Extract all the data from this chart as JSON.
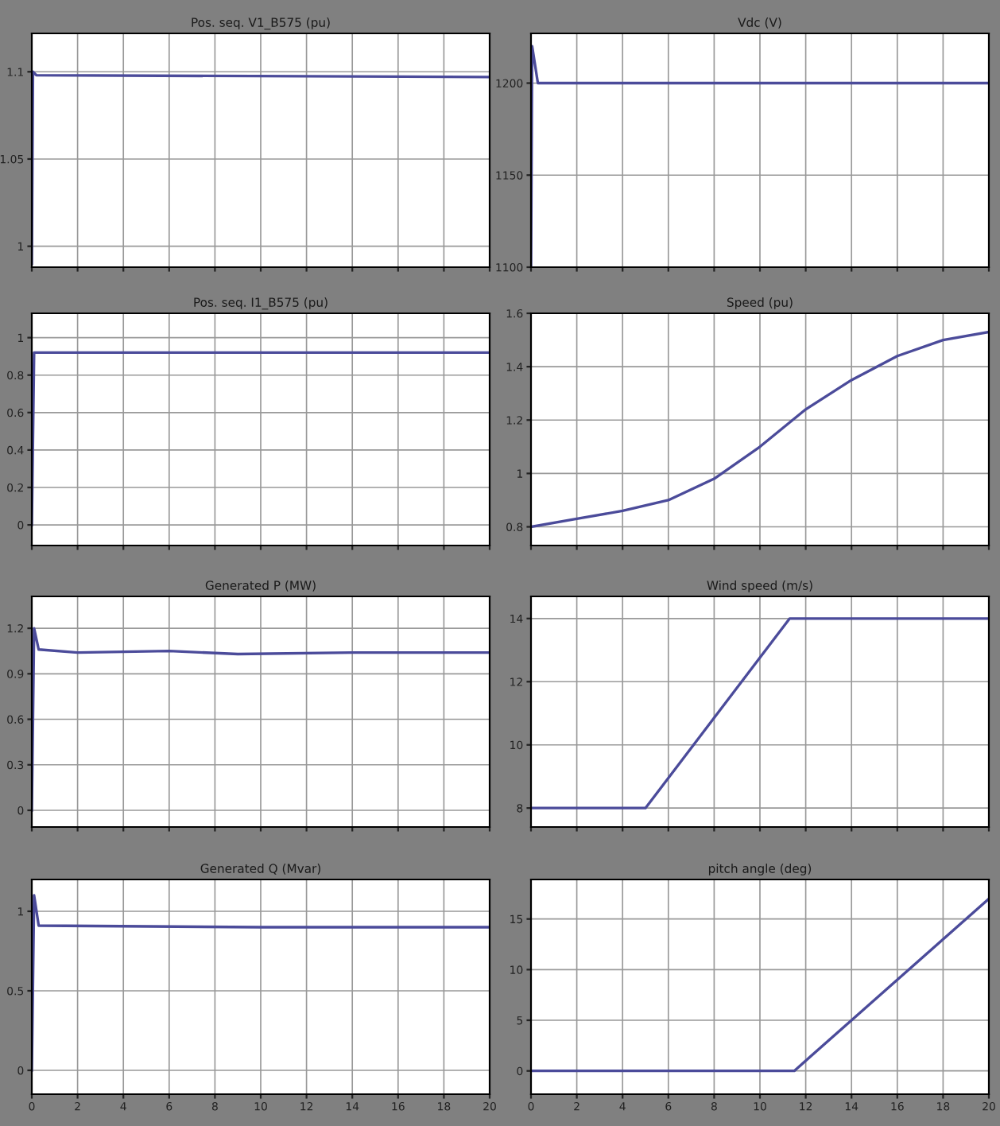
{
  "chart_data": [
    {
      "type": "line",
      "title": "Pos. seq. V1_B575 (pu)",
      "x": [
        0,
        0.05,
        0.2,
        20
      ],
      "series": [
        {
          "color": "#4b4b9a",
          "values": [
            0.99,
            1.1,
            1.098,
            1.097
          ]
        }
      ],
      "xlim": [
        0,
        20
      ],
      "xticks": [
        0,
        2,
        4,
        6,
        8,
        10,
        12,
        14,
        16,
        18,
        20
      ],
      "ylim": [
        0.988,
        1.122
      ],
      "yticks": [
        1,
        1.05,
        1.1
      ],
      "tick_labels": "y",
      "grid": true
    },
    {
      "type": "line",
      "title": "Vdc (V)",
      "x": [
        0,
        0.05,
        0.3,
        20
      ],
      "series": [
        {
          "color": "#4b4b9a",
          "values": [
            1100,
            1220,
            1200,
            1200
          ]
        }
      ],
      "xlim": [
        0,
        20
      ],
      "xticks": [
        0,
        2,
        4,
        6,
        8,
        10,
        12,
        14,
        16,
        18,
        20
      ],
      "ylim": [
        1100,
        1227
      ],
      "yticks": [
        1100,
        1150,
        1200
      ],
      "tick_labels": "y",
      "grid": true
    },
    {
      "type": "line",
      "title": "Pos. seq. I1_B575 (pu)",
      "x": [
        0,
        0.1,
        20
      ],
      "series": [
        {
          "color": "#4b4b9a",
          "values": [
            0,
            0.92,
            0.92
          ]
        }
      ],
      "xlim": [
        0,
        20
      ],
      "xticks": [
        0,
        2,
        4,
        6,
        8,
        10,
        12,
        14,
        16,
        18,
        20
      ],
      "ylim": [
        -0.11,
        1.13
      ],
      "yticks": [
        0,
        0.2,
        0.4,
        0.6,
        0.8,
        1
      ],
      "tick_labels": "y",
      "grid": true
    },
    {
      "type": "line",
      "title": "Speed (pu)",
      "x": [
        0,
        2,
        4,
        6,
        8,
        10,
        12,
        14,
        16,
        18,
        20
      ],
      "series": [
        {
          "color": "#4b4b9a",
          "values": [
            0.8,
            0.83,
            0.86,
            0.9,
            0.98,
            1.1,
            1.24,
            1.35,
            1.44,
            1.5,
            1.53
          ]
        }
      ],
      "xlim": [
        0,
        20
      ],
      "xticks": [
        0,
        2,
        4,
        6,
        8,
        10,
        12,
        14,
        16,
        18,
        20
      ],
      "ylim": [
        0.73,
        1.6
      ],
      "yticks": [
        0.8,
        1,
        1.2,
        1.4,
        1.6
      ],
      "tick_labels": "y",
      "grid": true
    },
    {
      "type": "line",
      "title": "Generated P (MW)",
      "x": [
        0,
        0.1,
        0.3,
        2,
        6,
        9,
        14,
        20
      ],
      "series": [
        {
          "color": "#4b4b9a",
          "values": [
            0,
            1.2,
            1.06,
            1.04,
            1.05,
            1.03,
            1.04,
            1.04
          ]
        }
      ],
      "xlim": [
        0,
        20
      ],
      "xticks": [
        0,
        2,
        4,
        6,
        8,
        10,
        12,
        14,
        16,
        18,
        20
      ],
      "ylim": [
        -0.11,
        1.41
      ],
      "yticks": [
        0,
        0.3,
        0.6,
        0.9,
        1.2
      ],
      "tick_labels": "y",
      "grid": true
    },
    {
      "type": "line",
      "title": "Wind speed (m/s)",
      "x": [
        0,
        5,
        11.3,
        20
      ],
      "series": [
        {
          "color": "#4b4b9a",
          "values": [
            8,
            8,
            14,
            14
          ]
        }
      ],
      "xlim": [
        0,
        20
      ],
      "xticks": [
        0,
        2,
        4,
        6,
        8,
        10,
        12,
        14,
        16,
        18,
        20
      ],
      "ylim": [
        7.4,
        14.7
      ],
      "yticks": [
        8,
        10,
        12,
        14
      ],
      "tick_labels": "y",
      "grid": true
    },
    {
      "type": "line",
      "title": "Generated Q (Mvar)",
      "x": [
        0,
        0.1,
        0.3,
        10,
        20
      ],
      "series": [
        {
          "color": "#4b4b9a",
          "values": [
            0,
            1.1,
            0.91,
            0.9,
            0.9
          ]
        }
      ],
      "xlim": [
        0,
        20
      ],
      "xticks": [
        0,
        2,
        4,
        6,
        8,
        10,
        12,
        14,
        16,
        18,
        20
      ],
      "ylim": [
        -0.15,
        1.2
      ],
      "yticks": [
        0,
        0.5,
        1
      ],
      "grid": true
    },
    {
      "type": "line",
      "title": "pitch angle (deg)",
      "x": [
        0,
        11.5,
        20
      ],
      "series": [
        {
          "color": "#4b4b9a",
          "values": [
            0,
            0,
            17
          ]
        }
      ],
      "xlim": [
        0,
        20
      ],
      "xticks": [
        0,
        2,
        4,
        6,
        8,
        10,
        12,
        14,
        16,
        18,
        20
      ],
      "ylim": [
        -2.3,
        18.9
      ],
      "yticks": [
        0,
        5,
        10,
        15
      ],
      "grid": true
    }
  ]
}
